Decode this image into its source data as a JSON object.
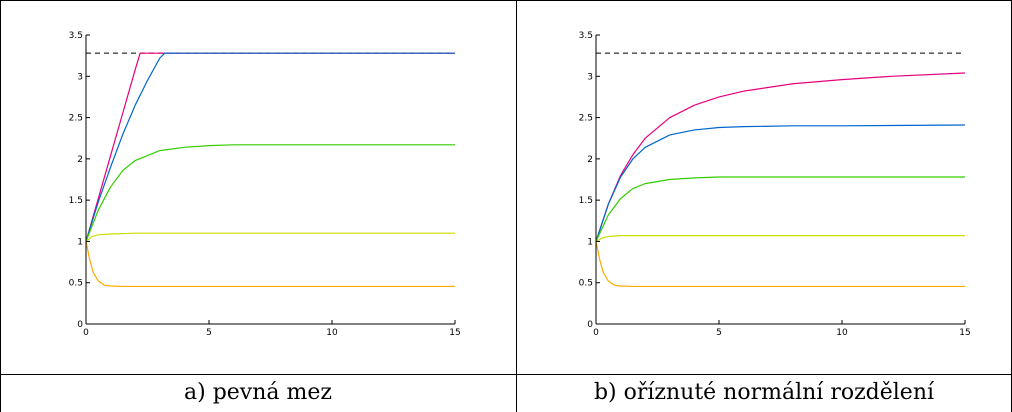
{
  "captions": [
    "a) pevná mez",
    "b) oříznuté normální rozdělení"
  ],
  "chart_data": [
    {
      "type": "line",
      "title": "",
      "xlabel": "",
      "ylabel": "",
      "xlim": [
        0,
        15
      ],
      "ylim": [
        0,
        3.5
      ],
      "xticks": [
        0,
        5,
        10,
        15
      ],
      "yticks": [
        0,
        0.5,
        1,
        1.5,
        2,
        2.5,
        3,
        3.5
      ],
      "xtick_labels": [
        "0",
        "5",
        "10",
        "15"
      ],
      "ytick_labels": [
        "0",
        "0.5",
        "1",
        "1.5",
        "2",
        "2.5",
        "3",
        "3.5"
      ],
      "grid": false,
      "reference_line": {
        "y": 3.28,
        "style": "dashed",
        "color": "#000000"
      },
      "series": [
        {
          "color": "#e6007e",
          "x": [
            0,
            0.5,
            1,
            1.5,
            2,
            2.2,
            3,
            5,
            10,
            15
          ],
          "y": [
            1,
            1.52,
            2.04,
            2.56,
            3.08,
            3.28,
            3.28,
            3.28,
            3.28,
            3.28
          ]
        },
        {
          "color": "#0066cc",
          "x": [
            0,
            0.5,
            1,
            1.5,
            2,
            2.5,
            3,
            3.2,
            5,
            10,
            15
          ],
          "y": [
            1,
            1.48,
            1.9,
            2.3,
            2.65,
            2.95,
            3.22,
            3.28,
            3.28,
            3.28,
            3.28
          ]
        },
        {
          "color": "#33cc00",
          "x": [
            0,
            0.5,
            1,
            1.5,
            2,
            3,
            4,
            5,
            6,
            8,
            10,
            15
          ],
          "y": [
            1,
            1.38,
            1.66,
            1.86,
            1.98,
            2.1,
            2.14,
            2.16,
            2.17,
            2.17,
            2.17,
            2.17
          ]
        },
        {
          "color": "#ccdd00",
          "x": [
            0,
            0.25,
            0.5,
            1,
            2,
            3,
            15
          ],
          "y": [
            1,
            1.06,
            1.08,
            1.09,
            1.1,
            1.1,
            1.1
          ]
        },
        {
          "color": "#ffaa00",
          "x": [
            0,
            0.15,
            0.3,
            0.5,
            0.75,
            1,
            1.5,
            2,
            15
          ],
          "y": [
            1,
            0.78,
            0.62,
            0.52,
            0.47,
            0.46,
            0.455,
            0.455,
            0.455
          ]
        }
      ]
    },
    {
      "type": "line",
      "title": "",
      "xlabel": "",
      "ylabel": "",
      "xlim": [
        0,
        15
      ],
      "ylim": [
        0,
        3.5
      ],
      "xticks": [
        0,
        5,
        10,
        15
      ],
      "yticks": [
        0,
        0.5,
        1,
        1.5,
        2,
        2.5,
        3,
        3.5
      ],
      "xtick_labels": [
        "0",
        "5",
        "10",
        "15"
      ],
      "ytick_labels": [
        "0",
        "0.5",
        "1",
        "1.5",
        "2",
        "2.5",
        "3",
        "3.5"
      ],
      "grid": false,
      "reference_line": {
        "y": 3.28,
        "style": "dashed",
        "color": "#000000"
      },
      "series": [
        {
          "color": "#e6007e",
          "x": [
            0,
            0.5,
            1,
            1.5,
            2,
            3,
            4,
            5,
            6,
            8,
            10,
            12,
            15
          ],
          "y": [
            1,
            1.45,
            1.8,
            2.05,
            2.25,
            2.5,
            2.65,
            2.75,
            2.82,
            2.91,
            2.96,
            3.0,
            3.04
          ]
        },
        {
          "color": "#0066cc",
          "x": [
            0,
            0.5,
            1,
            1.5,
            2,
            3,
            4,
            5,
            6,
            8,
            10,
            15
          ],
          "y": [
            1,
            1.45,
            1.78,
            2.0,
            2.14,
            2.29,
            2.35,
            2.38,
            2.39,
            2.4,
            2.4,
            2.41
          ]
        },
        {
          "color": "#33cc00",
          "x": [
            0,
            0.5,
            1,
            1.5,
            2,
            3,
            4,
            5,
            6,
            8,
            15
          ],
          "y": [
            1,
            1.32,
            1.52,
            1.64,
            1.7,
            1.75,
            1.77,
            1.78,
            1.78,
            1.78,
            1.78
          ]
        },
        {
          "color": "#ccdd00",
          "x": [
            0,
            0.25,
            0.5,
            1,
            2,
            15
          ],
          "y": [
            1,
            1.04,
            1.06,
            1.07,
            1.07,
            1.07
          ]
        },
        {
          "color": "#ffaa00",
          "x": [
            0,
            0.15,
            0.3,
            0.5,
            0.75,
            1,
            1.5,
            2,
            15
          ],
          "y": [
            1,
            0.78,
            0.62,
            0.52,
            0.47,
            0.46,
            0.455,
            0.455,
            0.455
          ]
        }
      ]
    }
  ]
}
